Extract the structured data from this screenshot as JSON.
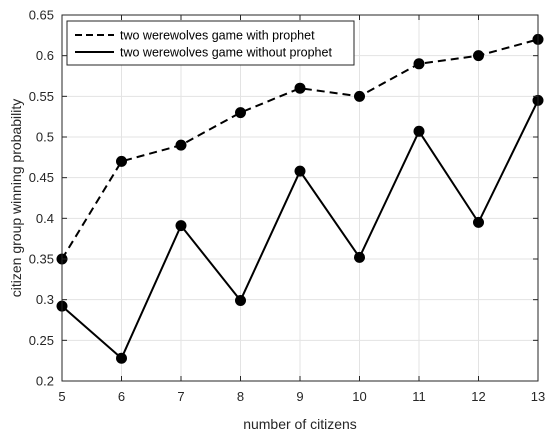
{
  "chart_data": {
    "type": "line",
    "xlabel": "number of citizens",
    "ylabel": "citizen group winning probability",
    "xlim": [
      5,
      13
    ],
    "ylim": [
      0.2,
      0.65
    ],
    "xticks": [
      5,
      6,
      7,
      8,
      9,
      10,
      11,
      12,
      13
    ],
    "yticks": [
      0.2,
      0.25,
      0.3,
      0.35,
      0.4,
      0.45,
      0.5,
      0.55,
      0.6,
      0.65
    ],
    "grid": true,
    "legend_position": "top-left",
    "x": [
      5,
      6,
      7,
      8,
      9,
      10,
      11,
      12,
      13
    ],
    "series": [
      {
        "name": "two werewolves game with prophet",
        "style": "dashed",
        "marker": "filled-circle",
        "color": "#000000",
        "values": [
          0.35,
          0.47,
          0.49,
          0.53,
          0.56,
          0.55,
          0.59,
          0.6,
          0.62
        ]
      },
      {
        "name": "two werewolves game without prophet",
        "style": "solid",
        "marker": "filled-circle",
        "color": "#000000",
        "values": [
          0.292,
          0.228,
          0.391,
          0.299,
          0.458,
          0.352,
          0.507,
          0.395,
          0.545
        ]
      }
    ]
  }
}
